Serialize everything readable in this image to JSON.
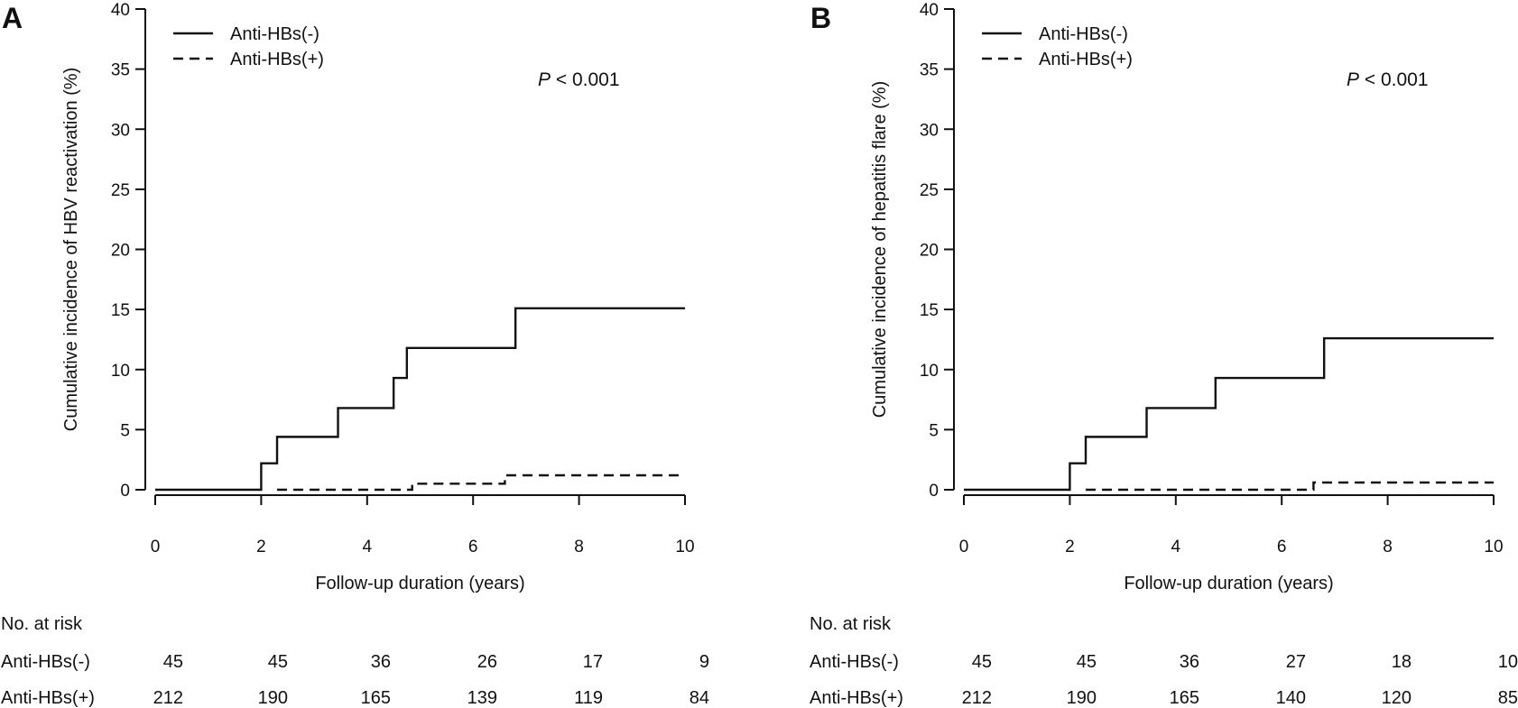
{
  "chart_data": [
    {
      "panel_label": "A",
      "type": "line",
      "step": true,
      "ylabel": "Cumulative incidence of HBV reactivation (%)",
      "xlabel": "Follow-up duration (years)",
      "xlim": [
        0,
        10
      ],
      "ylim": [
        0,
        40
      ],
      "x_ticks": [
        0,
        2,
        4,
        6,
        8,
        10
      ],
      "x_tick_labels": [
        "0",
        "2",
        "4",
        "6",
        "8",
        "10"
      ],
      "y_ticks": [
        0,
        5,
        10,
        15,
        20,
        25,
        30,
        35,
        40
      ],
      "y_tick_labels": [
        "0",
        "5",
        "10",
        "15",
        "20",
        "25",
        "30",
        "35",
        "40"
      ],
      "legend_position": "top-left",
      "p_value": {
        "italic": "P",
        "rest": " < 0.001"
      },
      "series": [
        {
          "name": "Anti-HBs(-)",
          "style": "solid",
          "x": [
            0,
            2.0,
            2.3,
            3.45,
            4.5,
            4.75,
            6.8,
            10
          ],
          "y": [
            0,
            2.2,
            4.4,
            6.8,
            9.3,
            11.8,
            15.1,
            15.1
          ]
        },
        {
          "name": "Anti-HBs(+)",
          "style": "dashed",
          "x_start": 2.3,
          "x": [
            2.3,
            4.85,
            6.6,
            10
          ],
          "y": [
            0,
            0.5,
            1.2,
            1.2
          ]
        }
      ],
      "risk_table": {
        "title": "No. at risk",
        "rows": [
          {
            "label": "Anti-HBs(-)",
            "values": [
              "45",
              "45",
              "36",
              "26",
              "17",
              "9"
            ]
          },
          {
            "label": "Anti-HBs(+)",
            "values": [
              "212",
              "190",
              "165",
              "139",
              "119",
              "84"
            ]
          }
        ]
      }
    },
    {
      "panel_label": "B",
      "type": "line",
      "step": true,
      "ylabel": "Cumulative incidence of hepatitis  flare (%)",
      "xlabel": "Follow-up duration (years)",
      "xlim": [
        0,
        10
      ],
      "ylim": [
        0,
        40
      ],
      "x_ticks": [
        0,
        2,
        4,
        6,
        8,
        10
      ],
      "x_tick_labels": [
        "0",
        "2",
        "4",
        "6",
        "8",
        "10"
      ],
      "y_ticks": [
        0,
        5,
        10,
        15,
        20,
        25,
        30,
        35,
        40
      ],
      "y_tick_labels": [
        "0",
        "5",
        "10",
        "15",
        "20",
        "25",
        "30",
        "35",
        "40"
      ],
      "legend_position": "top-left",
      "p_value": {
        "italic": "P",
        "rest": " < 0.001"
      },
      "series": [
        {
          "name": "Anti-HBs(-)",
          "style": "solid",
          "x": [
            0,
            2.0,
            2.3,
            3.45,
            4.75,
            6.8,
            10
          ],
          "y": [
            0,
            2.2,
            4.4,
            6.8,
            9.3,
            12.6,
            12.6
          ]
        },
        {
          "name": "Anti-HBs(+)",
          "style": "dashed",
          "x_start": 2.3,
          "x": [
            2.3,
            6.6,
            10
          ],
          "y": [
            0,
            0.6,
            0.6
          ]
        }
      ],
      "risk_table": {
        "title": "No. at risk",
        "rows": [
          {
            "label": "Anti-HBs(-)",
            "values": [
              "45",
              "45",
              "36",
              "27",
              "18",
              "10"
            ]
          },
          {
            "label": "Anti-HBs(+)",
            "values": [
              "212",
              "190",
              "165",
              "140",
              "120",
              "85"
            ]
          }
        ]
      }
    }
  ]
}
